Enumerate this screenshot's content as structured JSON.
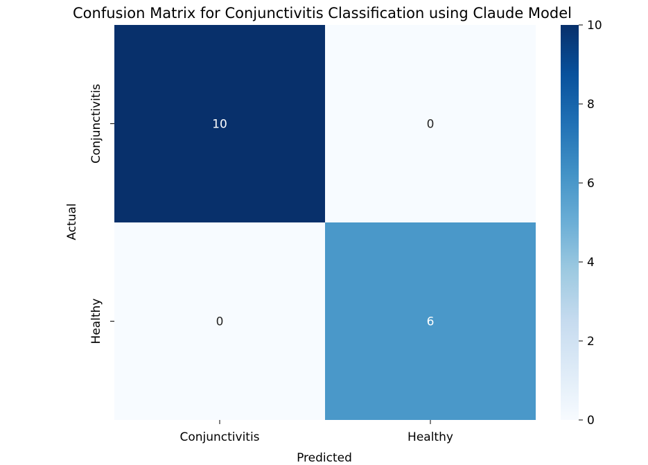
{
  "chart_data": {
    "type": "heatmap",
    "title": "Confusion Matrix for Conjunctivitis Classification using Claude Model",
    "xlabel": "Predicted",
    "ylabel": "Actual",
    "x_categories": [
      "Conjunctivitis",
      "Healthy"
    ],
    "y_categories": [
      "Conjunctivitis",
      "Healthy"
    ],
    "values": [
      [
        10,
        0
      ],
      [
        0,
        6
      ]
    ],
    "colormap": "Blues",
    "color_range": [
      0,
      10
    ],
    "colorbar_ticks": [
      "0",
      "2",
      "4",
      "6",
      "8",
      "10"
    ],
    "grid": false,
    "colorbar_position": "right"
  }
}
